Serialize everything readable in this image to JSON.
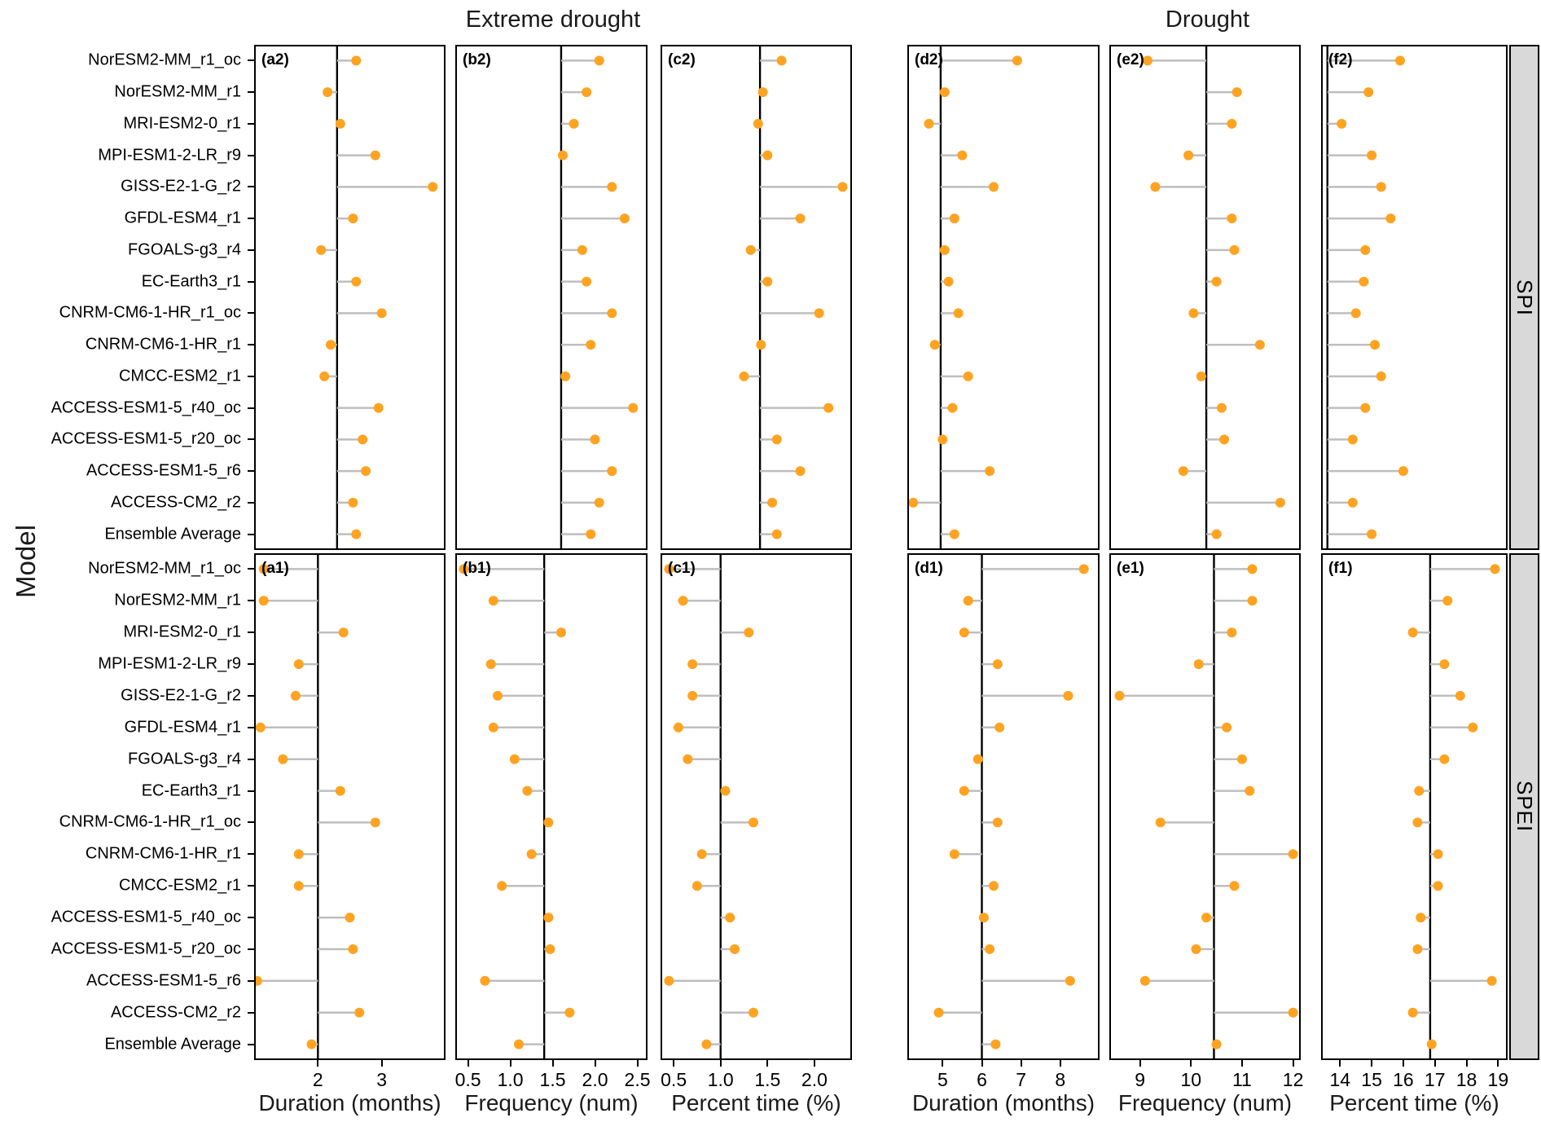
{
  "titles": {
    "group_left": "Extreme drought",
    "group_right": "Drought",
    "y_axis": "Model"
  },
  "facets": {
    "top": "SPI",
    "bottom": "SPEI"
  },
  "colors": {
    "dot": "#FFA321",
    "stem": "#BEBEBE",
    "ref_line": "#000000",
    "strip_bg": "#D9D9D9",
    "panel_border": "#000000"
  },
  "chart_data": {
    "type": "lollipop",
    "model_order": "top-to-bottom",
    "models": [
      "NorESM2-MM_r1_oc",
      "NorESM2-MM_r1",
      "MRI-ESM2-0_r1",
      "MPI-ESM1-2-LR_r9",
      "GISS-E2-1-G_r2",
      "GFDL-ESM4_r1",
      "FGOALS-g3_r4",
      "EC-Earth3_r1",
      "CNRM-CM6-1-HR_r1_oc",
      "CNRM-CM6-1-HR_r1",
      "CMCC-ESM2_r1",
      "ACCESS-ESM1-5_r40_oc",
      "ACCESS-ESM1-5_r20_oc",
      "ACCESS-ESM1-5_r6",
      "ACCESS-CM2_r2",
      "Ensemble Average"
    ],
    "columns": [
      {
        "group": "Extreme drought",
        "axis_title": "Duration (months)",
        "xlim": [
          1.0,
          4.0
        ],
        "tick_values": [
          2,
          3
        ],
        "tick_labels": [
          "2",
          "3"
        ]
      },
      {
        "group": "Extreme drought",
        "axis_title": "Frequency (num)",
        "xlim": [
          0.35,
          2.62
        ],
        "tick_values": [
          0.5,
          1.0,
          1.5,
          2.0,
          2.5
        ],
        "tick_labels": [
          "0.5",
          "1.0",
          "1.5",
          "2.0",
          "2.5"
        ]
      },
      {
        "group": "Extreme drought",
        "axis_title": "Percent time (%)",
        "xlim": [
          0.36,
          2.4
        ],
        "tick_values": [
          0.5,
          1.0,
          1.5,
          2.0
        ],
        "tick_labels": [
          "0.5",
          "1.0",
          "1.5",
          "2.0"
        ]
      },
      {
        "group": "Drought",
        "axis_title": "Duration (months)",
        "xlim": [
          4.1,
          9.0
        ],
        "tick_values": [
          5,
          6,
          7,
          8
        ],
        "tick_labels": [
          "5",
          "6",
          "7",
          "8"
        ]
      },
      {
        "group": "Drought",
        "axis_title": "Frequency (num)",
        "xlim": [
          8.4,
          12.15
        ],
        "tick_values": [
          9,
          10,
          11,
          12
        ],
        "tick_labels": [
          "9",
          "10",
          "11",
          "12"
        ]
      },
      {
        "group": "Drought",
        "axis_title": "Percent time (%)",
        "xlim": [
          13.4,
          19.3
        ],
        "tick_values": [
          14,
          15,
          16,
          17,
          18,
          19
        ],
        "tick_labels": [
          "14",
          "15",
          "16",
          "17",
          "18",
          "19"
        ]
      }
    ],
    "panels": [
      {
        "id": "a2",
        "tag": "(a2)",
        "facet": "SPI",
        "col": 0,
        "ref": 2.3,
        "values": [
          2.6,
          2.15,
          2.35,
          2.9,
          3.8,
          2.55,
          2.05,
          2.6,
          3.0,
          2.2,
          2.1,
          2.95,
          2.7,
          2.75,
          2.55,
          2.6
        ]
      },
      {
        "id": "b2",
        "tag": "(b2)",
        "facet": "SPI",
        "col": 1,
        "ref": 1.6,
        "values": [
          2.05,
          1.9,
          1.75,
          1.62,
          2.2,
          2.35,
          1.85,
          1.9,
          2.2,
          1.95,
          1.65,
          2.45,
          2.0,
          2.2,
          2.05,
          1.95
        ]
      },
      {
        "id": "c2",
        "tag": "(c2)",
        "facet": "SPI",
        "col": 2,
        "ref": 1.42,
        "values": [
          1.65,
          1.45,
          1.4,
          1.5,
          2.3,
          1.85,
          1.32,
          1.5,
          2.05,
          1.43,
          1.25,
          2.15,
          1.6,
          1.85,
          1.55,
          1.6
        ]
      },
      {
        "id": "d2",
        "tag": "(d2)",
        "facet": "SPI",
        "col": 3,
        "ref": 4.95,
        "values": [
          6.9,
          5.05,
          4.65,
          5.5,
          6.3,
          5.3,
          5.05,
          5.15,
          5.4,
          4.8,
          5.65,
          5.25,
          5.0,
          6.2,
          4.25,
          5.3
        ]
      },
      {
        "id": "e2",
        "tag": "(e2)",
        "facet": "SPI",
        "col": 4,
        "ref": 10.3,
        "values": [
          9.15,
          10.9,
          10.8,
          9.95,
          9.3,
          10.8,
          10.85,
          10.5,
          10.05,
          11.35,
          10.2,
          10.6,
          10.65,
          9.85,
          11.75,
          10.5
        ]
      },
      {
        "id": "f2",
        "tag": "(f2)",
        "facet": "SPI",
        "col": 5,
        "ref": 13.6,
        "values": [
          15.9,
          14.9,
          14.05,
          15.0,
          15.3,
          15.6,
          14.8,
          14.75,
          14.5,
          15.1,
          15.3,
          14.8,
          14.4,
          16.0,
          14.4,
          15.0
        ]
      },
      {
        "id": "a1",
        "tag": "(a1)",
        "facet": "SPEI",
        "col": 0,
        "ref": 2.0,
        "values": [
          1.15,
          1.15,
          2.4,
          1.7,
          1.65,
          1.1,
          1.45,
          2.35,
          2.9,
          1.7,
          1.7,
          2.5,
          2.55,
          1.05,
          2.65,
          1.9
        ]
      },
      {
        "id": "b1",
        "tag": "(b1)",
        "facet": "SPEI",
        "col": 1,
        "ref": 1.4,
        "values": [
          0.45,
          0.8,
          1.6,
          0.77,
          0.85,
          0.8,
          1.05,
          1.2,
          1.45,
          1.25,
          0.9,
          1.45,
          1.47,
          0.7,
          1.7,
          1.1
        ]
      },
      {
        "id": "c1",
        "tag": "(c1)",
        "facet": "SPEI",
        "col": 2,
        "ref": 1.0,
        "values": [
          0.45,
          0.6,
          1.3,
          0.7,
          0.7,
          0.55,
          0.65,
          1.05,
          1.35,
          0.8,
          0.75,
          1.1,
          1.15,
          0.45,
          1.35,
          0.85
        ]
      },
      {
        "id": "d1",
        "tag": "(d1)",
        "facet": "SPEI",
        "col": 3,
        "ref": 6.0,
        "values": [
          8.6,
          5.65,
          5.55,
          6.4,
          8.2,
          6.45,
          5.9,
          5.55,
          6.4,
          5.3,
          6.3,
          6.05,
          6.2,
          8.25,
          4.9,
          6.35
        ]
      },
      {
        "id": "e1",
        "tag": "(e1)",
        "facet": "SPEI",
        "col": 4,
        "ref": 10.45,
        "values": [
          11.2,
          11.2,
          10.8,
          10.15,
          8.6,
          10.7,
          11.0,
          11.15,
          9.4,
          12.0,
          10.85,
          10.3,
          10.1,
          9.1,
          12.0,
          10.5
        ]
      },
      {
        "id": "f1",
        "tag": "(f1)",
        "facet": "SPEI",
        "col": 5,
        "ref": 16.85,
        "values": [
          18.9,
          17.4,
          16.3,
          17.3,
          17.8,
          18.2,
          17.3,
          16.5,
          16.45,
          17.1,
          17.1,
          16.55,
          16.45,
          18.8,
          16.3,
          16.9
        ]
      }
    ]
  }
}
